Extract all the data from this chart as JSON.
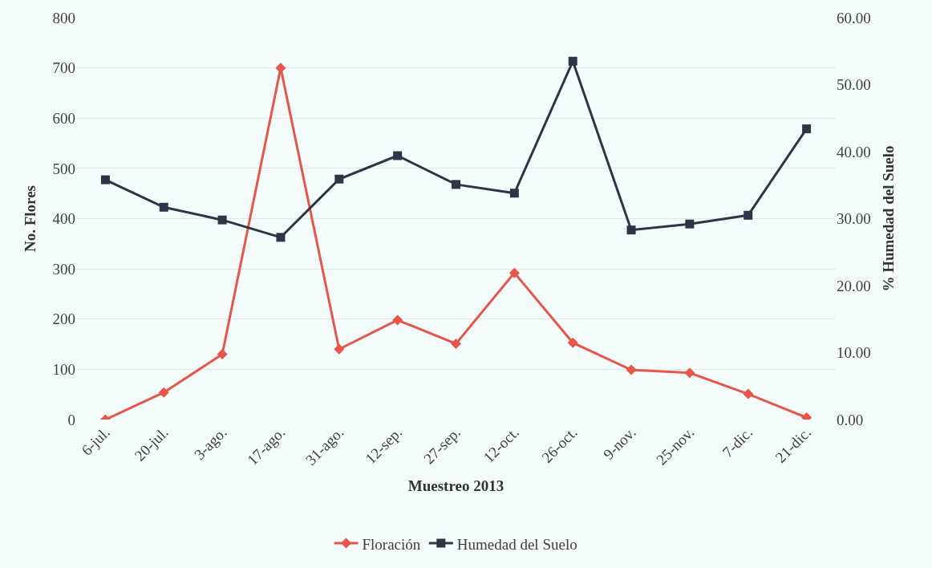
{
  "chart_data": {
    "type": "line",
    "xlabel": "Muestreo 2013",
    "ylabel": "No. Flores",
    "y2label": "% Humedad del Suelo",
    "categories": [
      "6-jul.",
      "20-jul.",
      "3-ago.",
      "17-ago.",
      "31-ago.",
      "12-sep.",
      "27-sep.",
      "12-oct.",
      "26-oct.",
      "9-nov.",
      "25-nov.",
      "7-dic.",
      "21-dic."
    ],
    "series": [
      {
        "name": "Floración",
        "color": "#e8554a",
        "marker": "diamond",
        "values": [
          0,
          54,
          130,
          700,
          140,
          198,
          151,
          292,
          153,
          99,
          93,
          51,
          4
        ]
      },
      {
        "name": "Humedad del Suelo",
        "color": "#2e3547",
        "marker": "square",
        "axis": "y2",
        "values": [
          35.8,
          31.7,
          29.8,
          27.2,
          35.9,
          39.4,
          35.1,
          33.8,
          53.5,
          28.3,
          29.2,
          30.5,
          43.4
        ]
      }
    ],
    "ylim": [
      0,
      800
    ],
    "yticks": [
      0,
      100,
      200,
      300,
      400,
      500,
      600,
      700,
      800
    ],
    "y2lim": [
      0,
      60
    ],
    "y2ticks": [
      {
        "value": 0,
        "label": "0.00"
      },
      {
        "value": 10,
        "label": "10.00"
      },
      {
        "value": 20,
        "label": "20.00"
      },
      {
        "value": 30,
        "label": "30.00"
      },
      {
        "value": 40,
        "label": "40.00"
      },
      {
        "value": 50,
        "label": "50.00"
      },
      {
        "value": 60,
        "label": "60.00"
      }
    ],
    "grid": "y",
    "legend": "bottom",
    "line_style": "solid"
  }
}
